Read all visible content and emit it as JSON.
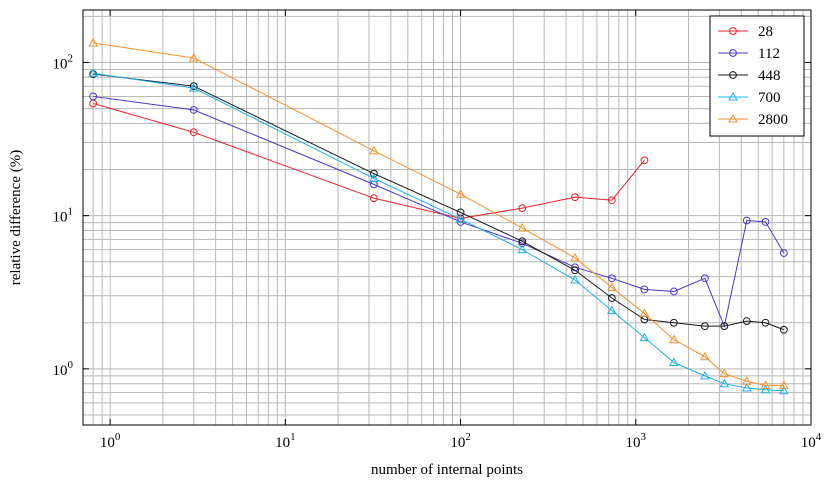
{
  "chart_data": {
    "type": "line",
    "xscale": "log",
    "yscale": "log",
    "xlabel": "number of internal points",
    "ylabel": "relative difference (%)",
    "xlim": [
      0.7,
      10000
    ],
    "ylim": [
      0.43,
      220
    ],
    "x_ticks": [
      {
        "base": "10",
        "exp": "0",
        "value": 1
      },
      {
        "base": "10",
        "exp": "1",
        "value": 10
      },
      {
        "base": "10",
        "exp": "2",
        "value": 100
      },
      {
        "base": "10",
        "exp": "3",
        "value": 1000
      },
      {
        "base": "10",
        "exp": "4",
        "value": 10000
      }
    ],
    "y_ticks": [
      {
        "base": "10",
        "exp": "0",
        "value": 1
      },
      {
        "base": "10",
        "exp": "1",
        "value": 10
      },
      {
        "base": "10",
        "exp": "2",
        "value": 100
      }
    ],
    "grid": true,
    "legend_position": "top-right",
    "series": [
      {
        "name": "28",
        "color": "#e8202a",
        "marker": "circle",
        "x": [
          0.8,
          3,
          32,
          100,
          225,
          450,
          730,
          1120
        ],
        "y": [
          54,
          35,
          13,
          9.6,
          11.2,
          13.2,
          12.6,
          23
        ]
      },
      {
        "name": "112",
        "color": "#4a38c8",
        "marker": "circle",
        "x": [
          0.8,
          3,
          32,
          100,
          225,
          450,
          730,
          1120,
          1650,
          2480,
          3200,
          4300,
          5500,
          7000
        ],
        "y": [
          60,
          49,
          16,
          9.1,
          6.6,
          4.6,
          3.9,
          3.3,
          3.2,
          3.9,
          1.9,
          9.3,
          9.1,
          5.7
        ]
      },
      {
        "name": "448",
        "color": "#1a1a1a",
        "marker": "circle",
        "x": [
          0.8,
          3,
          32,
          100,
          225,
          450,
          730,
          1120,
          1650,
          2480,
          3200,
          4300,
          5500,
          7000
        ],
        "y": [
          84,
          70,
          18.8,
          10.5,
          6.8,
          4.4,
          2.9,
          2.1,
          2.0,
          1.9,
          1.9,
          2.05,
          2.0,
          1.8
        ]
      },
      {
        "name": "700",
        "color": "#22b0e8",
        "marker": "triangle",
        "x": [
          0.8,
          3,
          32,
          100,
          225,
          450,
          730,
          1120,
          1650,
          2480,
          3200,
          4300,
          5500,
          7000
        ],
        "y": [
          85,
          68,
          17.5,
          9.5,
          6.0,
          3.8,
          2.4,
          1.6,
          1.1,
          0.9,
          0.8,
          0.75,
          0.73,
          0.72
        ]
      },
      {
        "name": "2800",
        "color": "#f5902a",
        "marker": "triangle",
        "x": [
          0.8,
          3,
          32,
          100,
          225,
          450,
          730,
          1120,
          1650,
          2480,
          3200,
          4300,
          5500,
          7000
        ],
        "y": [
          134,
          107,
          26.5,
          13.8,
          8.3,
          5.3,
          3.4,
          2.3,
          1.55,
          1.2,
          0.93,
          0.83,
          0.78,
          0.78
        ]
      }
    ]
  }
}
